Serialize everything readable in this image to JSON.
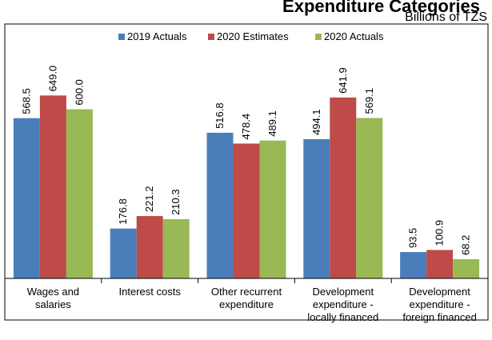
{
  "chart_data": {
    "type": "bar",
    "title": "Expenditure Categories",
    "unit_label": "Billions of TZS",
    "categories": [
      [
        "Wages and",
        "salaries"
      ],
      [
        "Interest costs"
      ],
      [
        "Other recurrent",
        "expenditure"
      ],
      [
        "Development",
        "expenditure -",
        "locally financed"
      ],
      [
        "Development",
        "expenditure -",
        "foreign financed"
      ]
    ],
    "series": [
      {
        "name": "2019 Actuals",
        "color": "#4a7ebb",
        "values": [
          568.5,
          176.8,
          516.8,
          494.1,
          93.5
        ]
      },
      {
        "name": "2020 Estimates",
        "color": "#be4b48",
        "values": [
          649.0,
          221.2,
          478.4,
          641.9,
          100.9
        ]
      },
      {
        "name": "2020 Actuals",
        "color": "#98b954",
        "values": [
          600.0,
          210.3,
          489.1,
          569.1,
          68.2
        ]
      }
    ],
    "ylim": [
      0,
      700
    ],
    "legend_position": "top",
    "grid": false
  }
}
